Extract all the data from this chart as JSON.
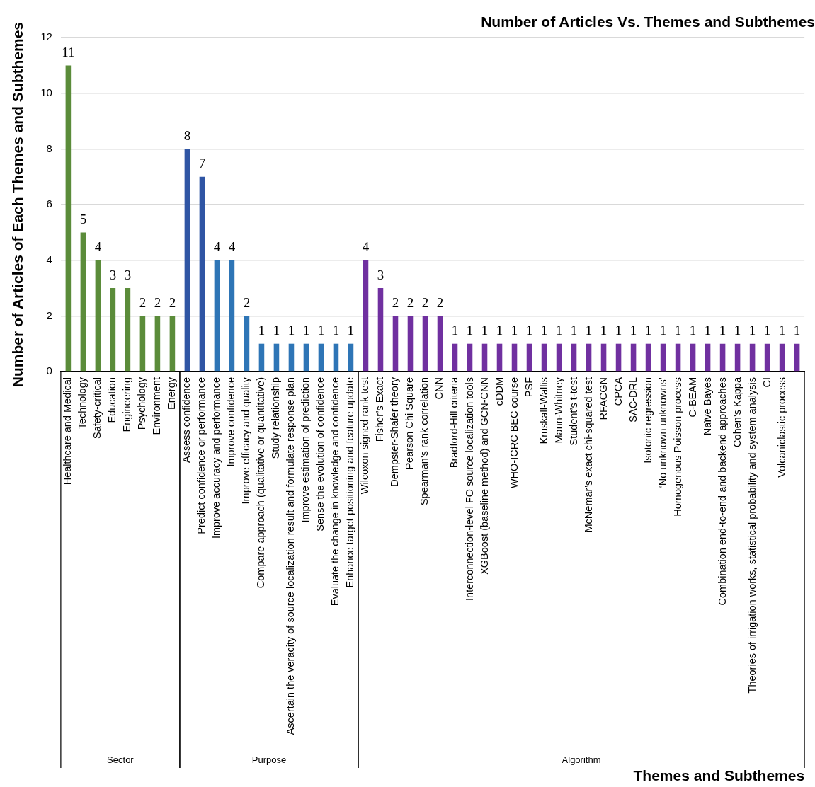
{
  "chart_data": {
    "type": "bar",
    "title": "Number of Articles Vs. Themes and Subthemes",
    "xlabel": "Themes and Subthemes",
    "ylabel": "Number of Articles of Each Themes and Subthemes",
    "categories": [
      "Healthcare and Medical",
      "Technology",
      "Safety-critical",
      "Education",
      "Engineering",
      "Psychology",
      "Environment",
      "Energy",
      "Assess confidence",
      "Predict confidence or performance",
      "Improve accuracy and performance",
      "Improve confidence",
      "Improve efficacy and quality",
      "Compare approach (qualitative or quantitative)",
      "Study relationship",
      "Ascertain the veracity of source localization result and formulate response plan",
      "Improve estimation of prediction",
      "Sense the evolution of confidence",
      "Evaluate the change in knowledge and confidence",
      "Enhance target positioning and feature update",
      "Wilcoxon signed rank test",
      "Fisher’s Exact",
      "Dempster-Shafer theory",
      "Pearson Chi Square",
      "Spearman’s rank correlation",
      "CNN",
      "Bradford-Hill criteria",
      "Interconnection-level FO source localization tools",
      "XGBoost (baseline method) and GCN-CNN",
      "cDDM",
      "WHO-ICRC BEC course",
      "PSF",
      "Kruskall-Wallis",
      "Mann-Whitney",
      "Student’s t-test",
      "McNemar’s exact chi-squared test",
      "RFACGN",
      "CPCA",
      "SAC-DRL",
      "Isotonic regression",
      "‘No unknown unknowns’",
      "Homogenous Poisson process",
      "C-BEAM",
      "Naïve Bayes",
      "Combination end-to-end and backend approaches",
      "Cohen’s Kappa",
      "Theories of irrigation works, statistical probability and system analysis",
      "CI",
      "Volcaniclastic process",
      null
    ],
    "series": [
      {
        "color": "#5b8c3a",
        "values": [
          11,
          5,
          4,
          3,
          3,
          2,
          2,
          2,
          null,
          null,
          null,
          null,
          null,
          null,
          null,
          null,
          null,
          null,
          null,
          null,
          null,
          null,
          null,
          null,
          null,
          null,
          null,
          null,
          null,
          null,
          null,
          null,
          null,
          null,
          null,
          null,
          null,
          null,
          null,
          null,
          null,
          null,
          null,
          null,
          null,
          null,
          null,
          null,
          null,
          null
        ]
      },
      {
        "color": "#2e75b6",
        "colors": [
          null,
          null,
          null,
          null,
          null,
          null,
          null,
          null,
          "#2f55a4",
          "#2f55a4",
          "#2e75b6",
          "#2e75b6",
          "#2e75b6",
          "#2e75b6",
          "#2e75b6",
          "#2e75b6",
          "#2e75b6",
          "#2e75b6",
          "#2e75b6",
          "#2e75b6",
          null,
          null,
          null,
          null,
          null,
          null,
          null,
          null,
          null,
          null,
          null,
          null,
          null,
          null,
          null,
          null,
          null,
          null,
          null,
          null,
          null,
          null,
          null,
          null,
          null,
          null,
          null,
          null,
          null,
          null
        ],
        "values": [
          null,
          null,
          null,
          null,
          null,
          null,
          null,
          null,
          8,
          7,
          4,
          4,
          2,
          1,
          1,
          1,
          1,
          1,
          1,
          1,
          null,
          null,
          null,
          null,
          null,
          null,
          null,
          null,
          null,
          null,
          null,
          null,
          null,
          null,
          null,
          null,
          null,
          null,
          null,
          null,
          null,
          null,
          null,
          null,
          null,
          null,
          null,
          null,
          null,
          null
        ]
      },
      {
        "color": "#7030a0",
        "values": [
          null,
          null,
          null,
          null,
          null,
          null,
          null,
          null,
          null,
          null,
          null,
          null,
          null,
          null,
          null,
          null,
          null,
          null,
          null,
          null,
          4,
          3,
          2,
          2,
          2,
          2,
          1,
          1,
          1,
          1,
          1,
          1,
          1,
          1,
          1,
          1,
          1,
          1,
          1,
          1,
          1,
          1,
          1,
          1,
          1,
          1,
          1,
          1,
          1,
          1
        ]
      }
    ],
    "ylim": [
      0,
      12
    ],
    "yticks": [
      0,
      2,
      4,
      6,
      8,
      10,
      12
    ],
    "grid": "y",
    "legend": false,
    "annotations": [
      "Sector",
      "Purpose",
      "Algorithm"
    ],
    "data_labels": true
  }
}
